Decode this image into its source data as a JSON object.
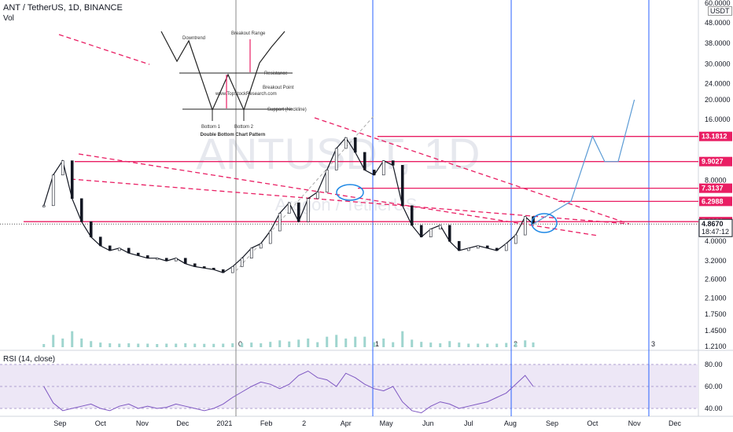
{
  "header": {
    "title": "ANT / TetherUS, 1D, BINANCE",
    "volume_label": "Vol",
    "currency_badge": "USDT",
    "watermark_symbol": "ANTUSDT, 1D",
    "watermark_name": "Aragon / TetherUS"
  },
  "colors": {
    "up": "#26a69a",
    "down": "#131722",
    "resistance": "#e91e63",
    "projection": "#5b9bd5",
    "vertical": "#2962ff",
    "rsi": "#7e57c2",
    "rsi_band": "#ede7f6"
  },
  "pattern_inset": {
    "title": "Double Bottom Chart Pattern",
    "labels": [
      "Downtrend",
      "Breakout Range",
      "Resistance",
      "Breakout Point",
      "www.TopStockResearch.com",
      "Support (Neckline)",
      "Bottom 1",
      "Bottom 2"
    ]
  },
  "chart_data": {
    "type": "line",
    "title": "ANT / TetherUS, 1D, BINANCE",
    "y_scale": "log",
    "ylim": [
      1.2,
      60
    ],
    "y_ticks": [
      "60.0000",
      "48.0000",
      "38.0000",
      "30.0000",
      "24.0000",
      "20.0000",
      "16.0000",
      "9.9027",
      "8.0000",
      "6.2988",
      "5.0021",
      "4.8670",
      "4.0000",
      "3.2000",
      "2.6000",
      "2.1000",
      "1.7500",
      "1.4500",
      "1.2100"
    ],
    "x_ticks": [
      "Sep",
      "Oct",
      "Nov",
      "Dec",
      "2021",
      "Feb",
      "2",
      "Apr",
      "May",
      "Jun",
      "Jul",
      "Aug",
      "Sep",
      "Oct",
      "Nov",
      "Dec"
    ],
    "price_levels": [
      13.1812,
      9.9027,
      7.3137,
      6.2988,
      5.0021
    ],
    "last_price": 4.867,
    "countdown": "18:47:12",
    "series": [
      {
        "x": [
          "2020-08-20",
          "2020-08-27",
          "2020-09-03",
          "2020-09-10",
          "2020-09-17",
          "2020-09-24",
          "2020-10-01",
          "2020-10-08",
          "2020-10-15",
          "2020-10-22",
          "2020-10-29",
          "2020-11-05",
          "2020-11-12",
          "2020-11-19",
          "2020-11-26",
          "2020-12-03",
          "2020-12-10",
          "2020-12-17",
          "2020-12-24",
          "2020-12-31",
          "2021-01-07",
          "2021-01-14",
          "2021-01-21",
          "2021-01-28",
          "2021-02-04",
          "2021-02-11",
          "2021-02-18",
          "2021-02-25",
          "2021-03-04",
          "2021-03-11",
          "2021-03-18",
          "2021-03-25",
          "2021-04-01",
          "2021-04-08",
          "2021-04-15",
          "2021-04-22",
          "2021-04-29",
          "2021-05-06",
          "2021-05-13",
          "2021-05-20",
          "2021-05-27",
          "2021-06-03",
          "2021-06-10",
          "2021-06-17",
          "2021-06-24",
          "2021-07-01",
          "2021-07-08",
          "2021-07-15",
          "2021-07-22",
          "2021-07-29",
          "2021-08-05",
          "2021-08-12",
          "2021-08-18"
        ],
        "values": [
          6.0,
          8.5,
          10.0,
          6.5,
          5.0,
          4.2,
          3.8,
          3.6,
          3.7,
          3.5,
          3.4,
          3.3,
          3.3,
          3.2,
          3.3,
          3.1,
          3.0,
          2.95,
          2.9,
          2.8,
          3.0,
          3.3,
          3.7,
          3.9,
          4.5,
          5.5,
          6.2,
          5.0,
          6.5,
          7.0,
          9.0,
          11.5,
          13.0,
          11.0,
          9.0,
          8.5,
          10.0,
          9.5,
          6.0,
          4.8,
          4.2,
          4.6,
          4.8,
          4.0,
          3.6,
          3.7,
          3.8,
          3.7,
          3.6,
          3.9,
          4.3,
          5.3,
          4.87
        ]
      }
    ],
    "projection_x": [
      "2021-08-18",
      "2021-09-15",
      "2021-10-01",
      "2021-10-10",
      "2021-10-20",
      "2021-11-01"
    ],
    "projection_values": [
      4.87,
      6.3,
      13.2,
      9.9,
      9.9,
      20.0
    ],
    "vertical_markers": [
      "0",
      "1",
      "2",
      "3"
    ],
    "rsi": {
      "title": "RSI (14, close)",
      "ylim": [
        30,
        80
      ],
      "y_ticks": [
        "80.00",
        "60.00",
        "40.00"
      ],
      "values": [
        60,
        45,
        38,
        40,
        42,
        44,
        40,
        38,
        42,
        44,
        40,
        42,
        40,
        41,
        44,
        42,
        40,
        38,
        40,
        44,
        50,
        55,
        60,
        64,
        62,
        58,
        62,
        70,
        74,
        68,
        66,
        60,
        72,
        68,
        62,
        58,
        56,
        60,
        46,
        38,
        36,
        42,
        46,
        44,
        40,
        42,
        44,
        46,
        50,
        54,
        62,
        70,
        60
      ]
    }
  }
}
